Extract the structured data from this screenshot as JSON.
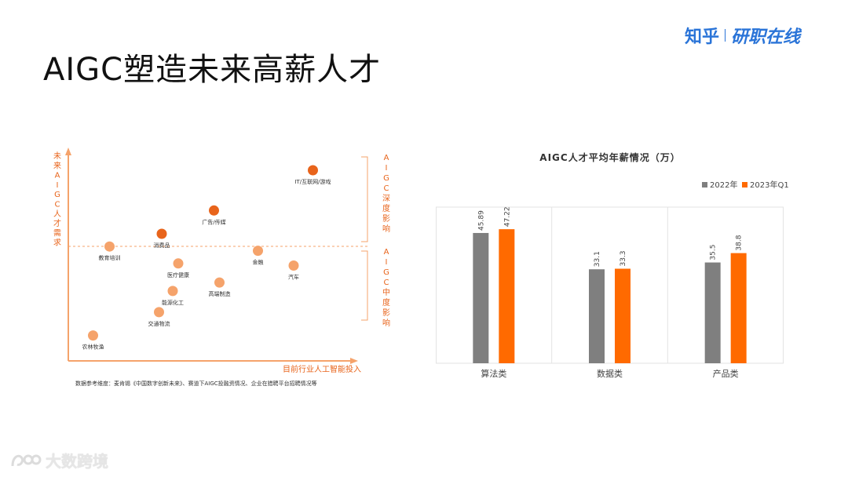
{
  "slide": {
    "title": "AIGC塑造未来高薪人才"
  },
  "brand": {
    "name": "知乎",
    "sub": "研职在线"
  },
  "watermark": {
    "text": "大数跨境"
  },
  "source_note": "数据参考维度：麦肯锡《中国数字创新未来》、赛道下AIGC投融资情况、企业在猎聘平台招聘情况等",
  "colors": {
    "orange": "#ff6a00",
    "light_orange": "#f5a36b",
    "dark_orange": "#e8641b",
    "gray": "#7f7f7f"
  },
  "chart_data": [
    {
      "type": "scatter",
      "title": "",
      "ylabel": "未来AIGC人才需求",
      "xlabel": "目前行业人工智能投入",
      "annotations": [
        "AIGC深度影响",
        "AIGC中度影响"
      ],
      "points": [
        {
          "label": "IT/互联网/游戏",
          "x": 0.89,
          "y": 0.9,
          "group": "deep"
        },
        {
          "label": "广告/传媒",
          "x": 0.53,
          "y": 0.71,
          "group": "deep"
        },
        {
          "label": "消费品",
          "x": 0.34,
          "y": 0.6,
          "group": "deep"
        },
        {
          "label": "教育培训",
          "x": 0.15,
          "y": 0.54,
          "group": "moderate"
        },
        {
          "label": "金融",
          "x": 0.69,
          "y": 0.52,
          "group": "moderate"
        },
        {
          "label": "汽车",
          "x": 0.82,
          "y": 0.45,
          "group": "moderate"
        },
        {
          "label": "医疗健康",
          "x": 0.4,
          "y": 0.46,
          "group": "moderate"
        },
        {
          "label": "高端制造",
          "x": 0.55,
          "y": 0.37,
          "group": "moderate"
        },
        {
          "label": "能源化工",
          "x": 0.38,
          "y": 0.33,
          "group": "moderate"
        },
        {
          "label": "交通物流",
          "x": 0.33,
          "y": 0.23,
          "group": "moderate"
        },
        {
          "label": "农林牧渔",
          "x": 0.09,
          "y": 0.12,
          "group": "moderate"
        }
      ]
    },
    {
      "type": "bar",
      "title": "AIGC人才平均年薪情况（万）",
      "categories": [
        "算法类",
        "数据类",
        "产品类"
      ],
      "series": [
        {
          "name": "2022年",
          "values": [
            45.89,
            33.1,
            35.5
          ]
        },
        {
          "name": "2023年Q1",
          "values": [
            47.22,
            33.3,
            38.8
          ]
        }
      ],
      "value_labels": [
        [
          "45.89",
          "33.1",
          "35.5"
        ],
        [
          "47.22",
          "33.3",
          "38.8"
        ]
      ],
      "ylim": [
        0,
        55
      ],
      "legend": "top-right",
      "grid": false
    }
  ]
}
